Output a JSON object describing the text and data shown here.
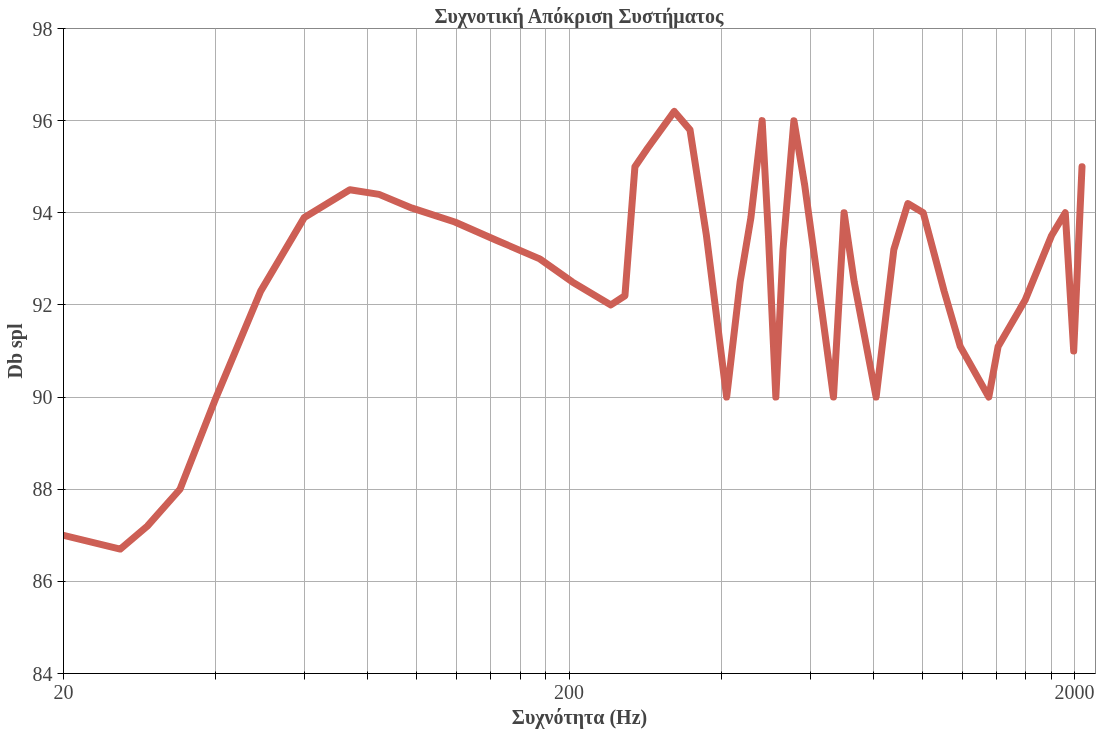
{
  "chart_data": {
    "type": "line",
    "title": "Συχνοτική Απόκριση Συστήματος",
    "xlabel": "Συχνότητα (Hz)",
    "ylabel": "Db spl",
    "log": "x",
    "grid": true,
    "marker": "none",
    "line_style": "solid",
    "xlim": [
      20,
      2200
    ],
    "ylim": [
      84,
      98
    ],
    "xticks": [
      20,
      {
        "value": 40,
        "label": null
      },
      {
        "value": 60,
        "label": null
      },
      {
        "value": 80,
        "label": null
      },
      {
        "value": 100,
        "label": null
      },
      {
        "value": 120,
        "label": null
      },
      {
        "value": 140,
        "label": null
      },
      {
        "value": 160,
        "label": null
      },
      {
        "value": 180,
        "label": null
      },
      200,
      {
        "value": 400,
        "label": null
      },
      {
        "value": 600,
        "label": null
      },
      {
        "value": 800,
        "label": null
      },
      {
        "value": 1000,
        "label": null
      },
      {
        "value": 1200,
        "label": null
      },
      {
        "value": 1400,
        "label": null
      },
      {
        "value": 1600,
        "label": null
      },
      {
        "value": 1800,
        "label": null
      },
      2000
    ],
    "yticks": [
      84,
      86,
      88,
      90,
      92,
      94,
      96,
      98
    ],
    "series": [
      {
        "color": "#cd5f55",
        "x": [
          20,
          25.9,
          29.3,
          34,
          40.1,
          49.1,
          59.9,
          73.7,
          84.2,
          97.9,
          118.9,
          144,
          175,
          203,
          242,
          258,
          270,
          286,
          323,
          347,
          374,
          410,
          436,
          458,
          482,
          496,
          513,
          530,
          557,
          585,
          625,
          667,
          700,
          733,
          810,
          878,
          936,
          1004,
          1104,
          1188,
          1353,
          1412,
          1596,
          1800,
          1917,
          1992,
          2069
        ],
        "values": [
          87.0,
          86.7,
          87.2,
          88.0,
          90.0,
          92.3,
          93.9,
          94.5,
          94.4,
          94.1,
          93.8,
          93.4,
          93.0,
          92.5,
          92.0,
          92.2,
          95.0,
          95.4,
          96.2,
          95.8,
          93.5,
          90.0,
          92.5,
          93.9,
          96.0,
          93.5,
          90.0,
          93.2,
          96.0,
          94.6,
          92.3,
          90.0,
          94.0,
          92.5,
          90.0,
          93.2,
          94.2,
          94.0,
          92.3,
          91.1,
          90.0,
          91.1,
          92.1,
          93.5,
          94.0,
          91.0,
          95.0
        ]
      }
    ]
  }
}
